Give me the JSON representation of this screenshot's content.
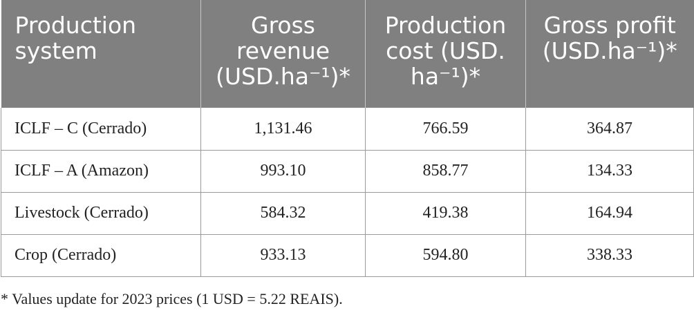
{
  "table": {
    "headers": [
      "Production system",
      "Gross revenue (USD.ha⁻¹)*",
      "Production cost (USD. ha⁻¹)*",
      "Gross profit (USD.ha⁻¹)*"
    ],
    "rows": [
      [
        "ICLF – C (Cerrado)",
        "1,131.46",
        "766.59",
        "364.87"
      ],
      [
        "ICLF – A (Amazon)",
        "993.10",
        "858.77",
        "134.33"
      ],
      [
        "Livestock (Cerrado)",
        "584.32",
        "419.38",
        "164.94"
      ],
      [
        "Crop (Cerrado)",
        "933.13",
        "594.80",
        "338.33"
      ]
    ]
  },
  "footnote": "* Values update for 2023 prices (1 USD = 5.22 REAIS).",
  "colors": {
    "header_background": "#808080",
    "header_text": "#ffffff",
    "border": "#9a9a9a"
  }
}
